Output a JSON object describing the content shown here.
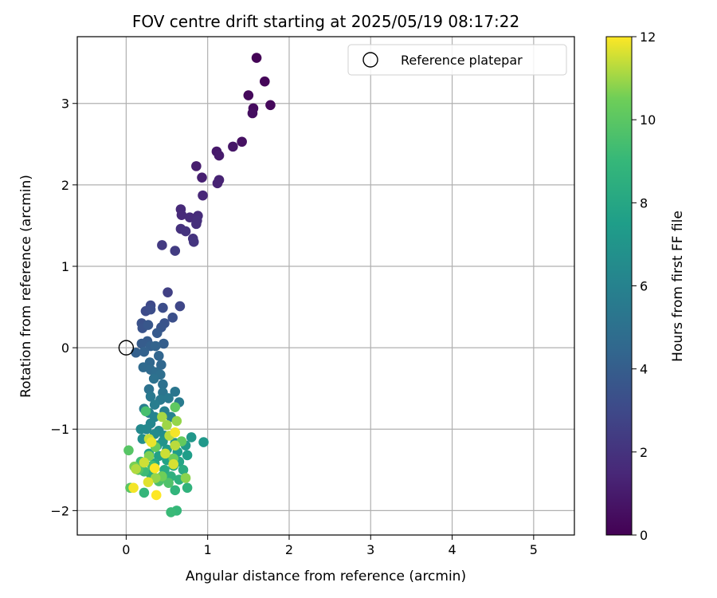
{
  "chart_data": {
    "type": "scatter",
    "title": "FOV centre drift starting at 2025/05/19 08:17:22",
    "xlabel": "Angular distance from reference (arcmin)",
    "ylabel": "Rotation from reference (arcmin)",
    "xlim": [
      -0.6,
      5.5
    ],
    "ylim": [
      -2.3,
      3.82
    ],
    "xticks": [
      0,
      1,
      2,
      3,
      4,
      5
    ],
    "xtick_labels": [
      "0",
      "1",
      "2",
      "3",
      "4",
      "5"
    ],
    "yticks": [
      -2,
      -1,
      0,
      1,
      2,
      3
    ],
    "ytick_labels": [
      "−2",
      "−1",
      "0",
      "1",
      "2",
      "3"
    ],
    "grid": true,
    "legend": {
      "placement": "top-right",
      "entries": [
        {
          "label": "Reference platepar",
          "marker": "open-circle"
        }
      ]
    },
    "reference_point": {
      "x": 0,
      "y": 0
    },
    "colorbar": {
      "label": "Hours from first FF file",
      "colormap": "viridis",
      "range": [
        0,
        12
      ],
      "ticks": [
        0,
        2,
        4,
        6,
        8,
        10,
        12
      ],
      "tick_labels": [
        "0",
        "2",
        "4",
        "6",
        "8",
        "10",
        "12"
      ]
    },
    "points": [
      [
        1.6,
        3.56,
        0.1
      ],
      [
        1.7,
        3.27,
        0.2
      ],
      [
        1.5,
        3.1,
        0.3
      ],
      [
        1.77,
        2.98,
        0.3
      ],
      [
        1.56,
        2.94,
        0.4
      ],
      [
        1.55,
        2.88,
        0.5
      ],
      [
        1.42,
        2.53,
        0.6
      ],
      [
        1.31,
        2.47,
        0.8
      ],
      [
        1.11,
        2.41,
        0.9
      ],
      [
        1.14,
        2.36,
        1.0
      ],
      [
        0.86,
        2.23,
        1.1
      ],
      [
        0.93,
        2.09,
        1.2
      ],
      [
        1.14,
        2.06,
        1.3
      ],
      [
        1.12,
        2.02,
        1.3
      ],
      [
        0.94,
        1.87,
        1.5
      ],
      [
        0.67,
        1.7,
        1.6
      ],
      [
        0.68,
        1.63,
        1.6
      ],
      [
        0.88,
        1.62,
        1.7
      ],
      [
        0.78,
        1.6,
        1.7
      ],
      [
        0.87,
        1.56,
        1.8
      ],
      [
        0.86,
        1.52,
        1.8
      ],
      [
        0.67,
        1.46,
        1.9
      ],
      [
        0.73,
        1.43,
        2.0
      ],
      [
        0.82,
        1.34,
        2.0
      ],
      [
        0.83,
        1.3,
        2.1
      ],
      [
        0.44,
        1.26,
        2.3
      ],
      [
        0.6,
        1.19,
        2.4
      ],
      [
        0.51,
        0.68,
        2.6
      ],
      [
        0.66,
        0.51,
        2.9
      ],
      [
        0.3,
        0.52,
        3.0
      ],
      [
        0.24,
        0.45,
        3.1
      ],
      [
        0.3,
        0.47,
        3.2
      ],
      [
        0.45,
        0.49,
        3.2
      ],
      [
        0.57,
        0.37,
        3.3
      ],
      [
        0.19,
        0.3,
        3.4
      ],
      [
        0.47,
        0.3,
        3.5
      ],
      [
        0.2,
        0.24,
        3.5
      ],
      [
        0.43,
        0.25,
        3.6
      ],
      [
        0.27,
        0.28,
        3.7
      ],
      [
        0.38,
        0.18,
        3.8
      ],
      [
        0.26,
        0.08,
        3.9
      ],
      [
        0.19,
        0.05,
        3.9
      ],
      [
        0.46,
        0.05,
        4.0
      ],
      [
        0.12,
        -0.06,
        4.1
      ],
      [
        0.3,
        0.02,
        4.1
      ],
      [
        0.22,
        -0.05,
        4.2
      ],
      [
        0.36,
        0.02,
        4.3
      ],
      [
        0.4,
        -0.1,
        4.4
      ],
      [
        0.29,
        -0.18,
        4.5
      ],
      [
        0.43,
        -0.21,
        4.5
      ],
      [
        0.21,
        -0.24,
        4.6
      ],
      [
        0.3,
        -0.27,
        4.7
      ],
      [
        0.37,
        -0.3,
        4.8
      ],
      [
        0.42,
        -0.33,
        4.9
      ],
      [
        0.34,
        -0.38,
        5.0
      ],
      [
        0.45,
        -0.45,
        5.0
      ],
      [
        0.28,
        -0.51,
        5.1
      ],
      [
        0.45,
        -0.55,
        5.2
      ],
      [
        0.6,
        -0.54,
        5.3
      ],
      [
        0.3,
        -0.6,
        5.4
      ],
      [
        0.42,
        -0.64,
        5.5
      ],
      [
        0.52,
        -0.62,
        5.5
      ],
      [
        0.65,
        -0.67,
        5.6
      ],
      [
        0.35,
        -0.7,
        5.7
      ],
      [
        0.22,
        -0.75,
        5.7
      ],
      [
        0.28,
        -0.8,
        5.8
      ],
      [
        0.47,
        -0.78,
        5.9
      ],
      [
        0.55,
        -0.85,
        6.0
      ],
      [
        0.35,
        -0.85,
        6.1
      ],
      [
        0.3,
        -0.93,
        6.2
      ],
      [
        0.25,
        -1.0,
        6.3
      ],
      [
        0.4,
        -1.02,
        6.4
      ],
      [
        0.18,
        -1.0,
        6.4
      ],
      [
        0.35,
        -1.06,
        6.5
      ],
      [
        0.47,
        -1.08,
        6.6
      ],
      [
        0.2,
        -1.12,
        6.7
      ],
      [
        0.3,
        -1.14,
        6.8
      ],
      [
        0.45,
        -1.15,
        6.9
      ],
      [
        0.6,
        -1.17,
        6.9
      ],
      [
        0.38,
        -1.2,
        7.0
      ],
      [
        0.8,
        -1.1,
        7.1
      ],
      [
        0.95,
        -1.16,
        7.2
      ],
      [
        0.73,
        -1.2,
        7.3
      ],
      [
        0.5,
        -1.25,
        7.3
      ],
      [
        0.63,
        -1.28,
        7.4
      ],
      [
        0.75,
        -1.32,
        7.5
      ],
      [
        0.28,
        -1.3,
        7.6
      ],
      [
        0.4,
        -1.33,
        7.7
      ],
      [
        0.5,
        -1.38,
        7.8
      ],
      [
        0.65,
        -1.4,
        7.9
      ],
      [
        0.35,
        -1.42,
        8.0
      ],
      [
        0.58,
        -1.45,
        8.1
      ],
      [
        0.47,
        -1.5,
        8.2
      ],
      [
        0.7,
        -1.5,
        8.3
      ],
      [
        0.3,
        -1.55,
        8.4
      ],
      [
        0.55,
        -1.58,
        8.5
      ],
      [
        0.42,
        -1.6,
        8.6
      ],
      [
        0.65,
        -1.62,
        8.6
      ],
      [
        0.75,
        -1.72,
        8.7
      ],
      [
        0.6,
        -1.75,
        8.8
      ],
      [
        0.22,
        -1.78,
        8.9
      ],
      [
        0.62,
        -2.0,
        9.0
      ],
      [
        0.55,
        -2.02,
        9.1
      ],
      [
        0.22,
        -1.52,
        9.2
      ],
      [
        0.18,
        -1.4,
        9.3
      ],
      [
        0.32,
        -1.45,
        9.4
      ],
      [
        0.24,
        -0.78,
        9.5
      ],
      [
        0.4,
        -1.64,
        9.6
      ],
      [
        0.52,
        -1.66,
        9.7
      ],
      [
        0.15,
        -1.5,
        9.8
      ],
      [
        0.03,
        -1.26,
        9.9
      ],
      [
        0.05,
        -1.72,
        10.0
      ],
      [
        0.6,
        -0.73,
        10.1
      ],
      [
        0.68,
        -1.15,
        10.2
      ],
      [
        0.36,
        -1.22,
        10.3
      ],
      [
        0.58,
        -1.36,
        10.4
      ],
      [
        0.44,
        -1.58,
        10.5
      ],
      [
        0.1,
        -1.46,
        10.6
      ],
      [
        0.28,
        -1.33,
        10.7
      ],
      [
        0.73,
        -1.6,
        10.8
      ],
      [
        0.36,
        -1.6,
        10.9
      ],
      [
        0.62,
        -0.9,
        10.9
      ],
      [
        0.5,
        -0.95,
        11.0
      ],
      [
        0.44,
        -0.85,
        11.1
      ],
      [
        0.12,
        -1.49,
        11.2
      ],
      [
        0.53,
        -1.08,
        11.3
      ],
      [
        0.6,
        -1.2,
        11.3
      ],
      [
        0.28,
        -1.12,
        11.4
      ],
      [
        0.48,
        -1.3,
        11.5
      ],
      [
        0.22,
        -1.41,
        11.5
      ],
      [
        0.58,
        -1.43,
        11.6
      ],
      [
        0.27,
        -1.65,
        11.7
      ],
      [
        0.31,
        -1.16,
        11.8
      ],
      [
        0.6,
        -1.04,
        11.9
      ],
      [
        0.09,
        -1.72,
        11.9
      ],
      [
        0.37,
        -1.81,
        12.0
      ],
      [
        0.35,
        -1.48,
        12.0
      ]
    ]
  }
}
